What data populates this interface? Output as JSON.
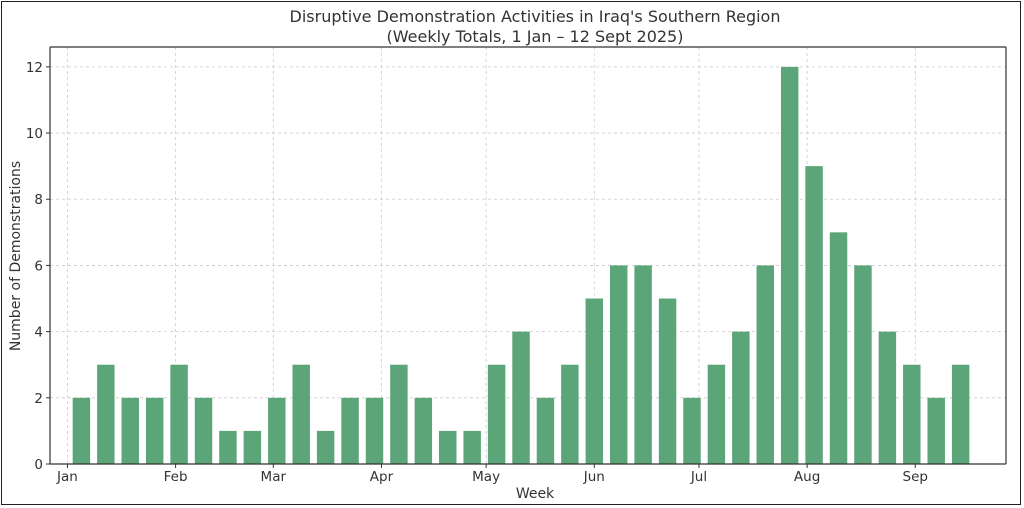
{
  "chart_data": {
    "type": "bar",
    "title": "Disruptive Demonstration Activities in Iraq's Southern Region",
    "subtitle": "(Weekly Totals, 1 Jan – 12 Sept 2025)",
    "xlabel": "Week",
    "ylabel": "Number of Demonstrations",
    "x": [
      "2025-01-05",
      "2025-01-12",
      "2025-01-19",
      "2025-01-26",
      "2025-02-02",
      "2025-02-09",
      "2025-02-16",
      "2025-02-23",
      "2025-03-02",
      "2025-03-09",
      "2025-03-16",
      "2025-03-23",
      "2025-03-30",
      "2025-04-06",
      "2025-04-13",
      "2025-04-20",
      "2025-04-27",
      "2025-05-04",
      "2025-05-11",
      "2025-05-18",
      "2025-05-25",
      "2025-06-01",
      "2025-06-08",
      "2025-06-15",
      "2025-06-22",
      "2025-06-29",
      "2025-07-06",
      "2025-07-13",
      "2025-07-20",
      "2025-07-27",
      "2025-08-03",
      "2025-08-10",
      "2025-08-17",
      "2025-08-24",
      "2025-08-31",
      "2025-09-07",
      "2025-09-14"
    ],
    "values": [
      2,
      3,
      2,
      2,
      3,
      2,
      1,
      1,
      2,
      3,
      1,
      2,
      2,
      3,
      2,
      1,
      1,
      3,
      4,
      2,
      3,
      5,
      6,
      6,
      5,
      2,
      3,
      4,
      6,
      12,
      9,
      7,
      6,
      4,
      3,
      2,
      3
    ],
    "xlim": [
      "2024-12-27",
      "2025-09-27"
    ],
    "ylim": [
      0,
      12.6
    ],
    "yticks": [
      0,
      2,
      4,
      6,
      8,
      10,
      12
    ],
    "xticks": [
      {
        "date": "2025-01-01",
        "label": "Jan"
      },
      {
        "date": "2025-02-01",
        "label": "Feb"
      },
      {
        "date": "2025-03-01",
        "label": "Mar"
      },
      {
        "date": "2025-04-01",
        "label": "Apr"
      },
      {
        "date": "2025-05-01",
        "label": "May"
      },
      {
        "date": "2025-06-01",
        "label": "Jun"
      },
      {
        "date": "2025-07-01",
        "label": "Jul"
      },
      {
        "date": "2025-08-01",
        "label": "Aug"
      },
      {
        "date": "2025-09-01",
        "label": "Sep"
      }
    ],
    "grid": true,
    "bar_color": "#5ba578"
  }
}
